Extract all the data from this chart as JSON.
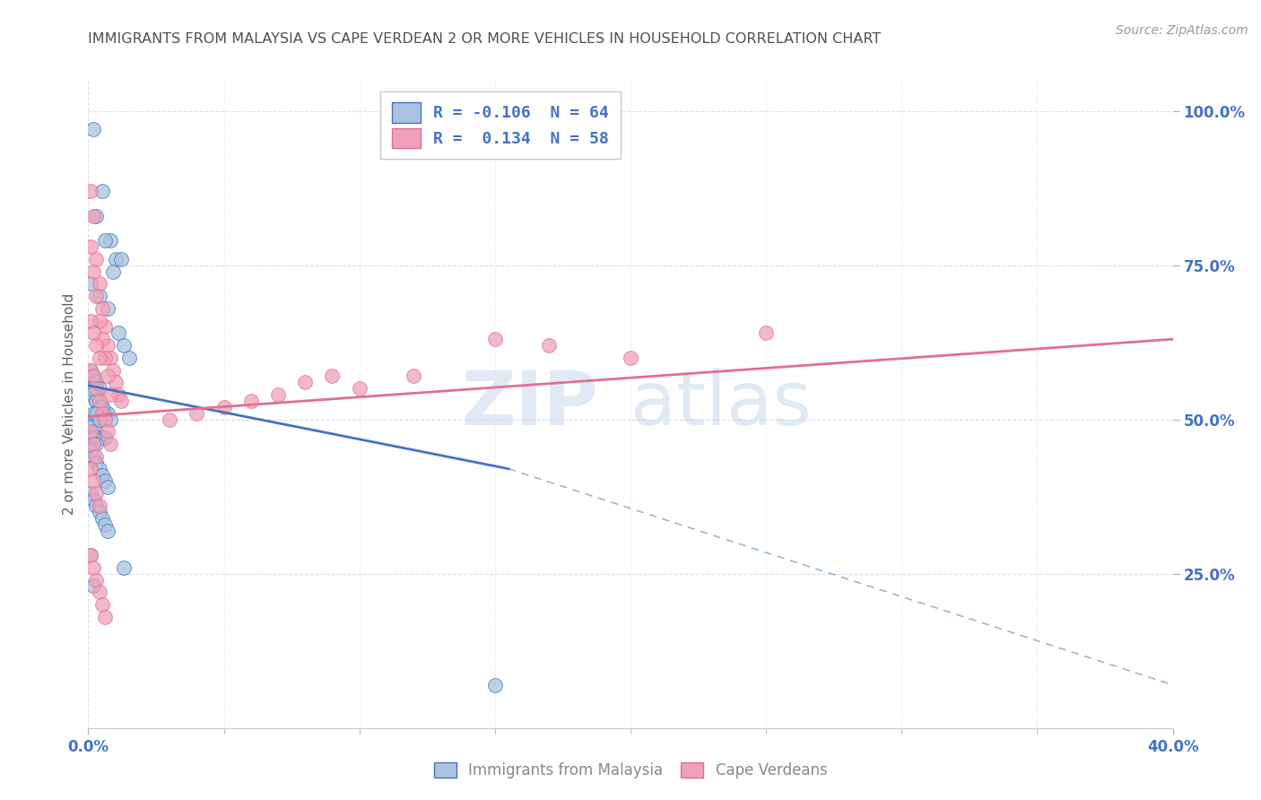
{
  "title": "IMMIGRANTS FROM MALAYSIA VS CAPE VERDEAN 2 OR MORE VEHICLES IN HOUSEHOLD CORRELATION CHART",
  "source": "Source: ZipAtlas.com",
  "ylabel": "2 or more Vehicles in Household",
  "xlim": [
    0.0,
    0.4
  ],
  "ylim": [
    0.0,
    1.05
  ],
  "xtick_labels_ends": [
    "0.0%",
    "40.0%"
  ],
  "xtick_vals_ends": [
    0.0,
    0.4
  ],
  "ytick_labels": [
    "25.0%",
    "50.0%",
    "75.0%",
    "100.0%"
  ],
  "ytick_vals": [
    0.25,
    0.5,
    0.75,
    1.0
  ],
  "color_blue": "#a8c4e0",
  "color_pink": "#f0a0b8",
  "trendline1_color": "#4472c4",
  "trendline2_color": "#e07090",
  "trendline_dashed_color": "#90b0d0",
  "background_color": "#ffffff",
  "grid_color": "#d0d8e8",
  "title_color": "#505050",
  "axis_label_color": "#606060",
  "tick_label_color": "#4472c4",
  "watermark_color": "#c8d8ec",
  "blue_trendline": [
    [
      0.0,
      0.555
    ],
    [
      0.155,
      0.42
    ]
  ],
  "pink_trendline": [
    [
      0.0,
      0.505
    ],
    [
      0.4,
      0.63
    ]
  ],
  "dashed_line": [
    [
      0.155,
      0.42
    ],
    [
      0.4,
      0.07
    ]
  ],
  "blue_x": [
    0.002,
    0.005,
    0.003,
    0.008,
    0.006,
    0.01,
    0.012,
    0.009,
    0.001,
    0.004,
    0.007,
    0.011,
    0.013,
    0.015,
    0.002,
    0.003,
    0.001,
    0.002,
    0.003,
    0.004,
    0.001,
    0.002,
    0.003,
    0.004,
    0.005,
    0.006,
    0.007,
    0.008,
    0.001,
    0.002,
    0.003,
    0.004,
    0.005,
    0.006,
    0.001,
    0.002,
    0.003,
    0.001,
    0.002,
    0.001,
    0.003,
    0.004,
    0.005,
    0.002,
    0.003,
    0.004,
    0.001,
    0.002,
    0.003,
    0.004,
    0.005,
    0.006,
    0.007,
    0.001,
    0.002,
    0.003,
    0.004,
    0.005,
    0.006,
    0.007,
    0.001,
    0.013,
    0.002,
    0.15
  ],
  "blue_y": [
    0.97,
    0.87,
    0.83,
    0.79,
    0.79,
    0.76,
    0.76,
    0.74,
    0.72,
    0.7,
    0.68,
    0.64,
    0.62,
    0.6,
    0.56,
    0.54,
    0.58,
    0.57,
    0.56,
    0.55,
    0.55,
    0.54,
    0.53,
    0.52,
    0.52,
    0.51,
    0.51,
    0.5,
    0.5,
    0.49,
    0.48,
    0.47,
    0.47,
    0.47,
    0.47,
    0.47,
    0.46,
    0.55,
    0.55,
    0.54,
    0.53,
    0.52,
    0.52,
    0.51,
    0.51,
    0.5,
    0.45,
    0.44,
    0.43,
    0.42,
    0.41,
    0.4,
    0.39,
    0.38,
    0.37,
    0.36,
    0.35,
    0.34,
    0.33,
    0.32,
    0.28,
    0.26,
    0.23,
    0.07
  ],
  "pink_x": [
    0.001,
    0.002,
    0.003,
    0.004,
    0.005,
    0.006,
    0.007,
    0.008,
    0.009,
    0.01,
    0.011,
    0.012,
    0.001,
    0.002,
    0.003,
    0.004,
    0.005,
    0.006,
    0.007,
    0.008,
    0.001,
    0.002,
    0.003,
    0.004,
    0.001,
    0.002,
    0.003,
    0.004,
    0.005,
    0.006,
    0.007,
    0.008,
    0.001,
    0.002,
    0.003,
    0.1,
    0.12,
    0.05,
    0.07,
    0.08,
    0.03,
    0.04,
    0.06,
    0.09,
    0.001,
    0.002,
    0.003,
    0.004,
    0.15,
    0.2,
    0.25,
    0.17,
    0.001,
    0.002,
    0.003,
    0.004,
    0.005,
    0.006
  ],
  "pink_y": [
    0.87,
    0.83,
    0.76,
    0.72,
    0.68,
    0.65,
    0.62,
    0.6,
    0.58,
    0.56,
    0.54,
    0.53,
    0.78,
    0.74,
    0.7,
    0.66,
    0.63,
    0.6,
    0.57,
    0.54,
    0.66,
    0.64,
    0.62,
    0.6,
    0.58,
    0.57,
    0.55,
    0.53,
    0.51,
    0.5,
    0.48,
    0.46,
    0.48,
    0.46,
    0.44,
    0.55,
    0.57,
    0.52,
    0.54,
    0.56,
    0.5,
    0.51,
    0.53,
    0.57,
    0.42,
    0.4,
    0.38,
    0.36,
    0.63,
    0.6,
    0.64,
    0.62,
    0.28,
    0.26,
    0.24,
    0.22,
    0.2,
    0.18
  ]
}
